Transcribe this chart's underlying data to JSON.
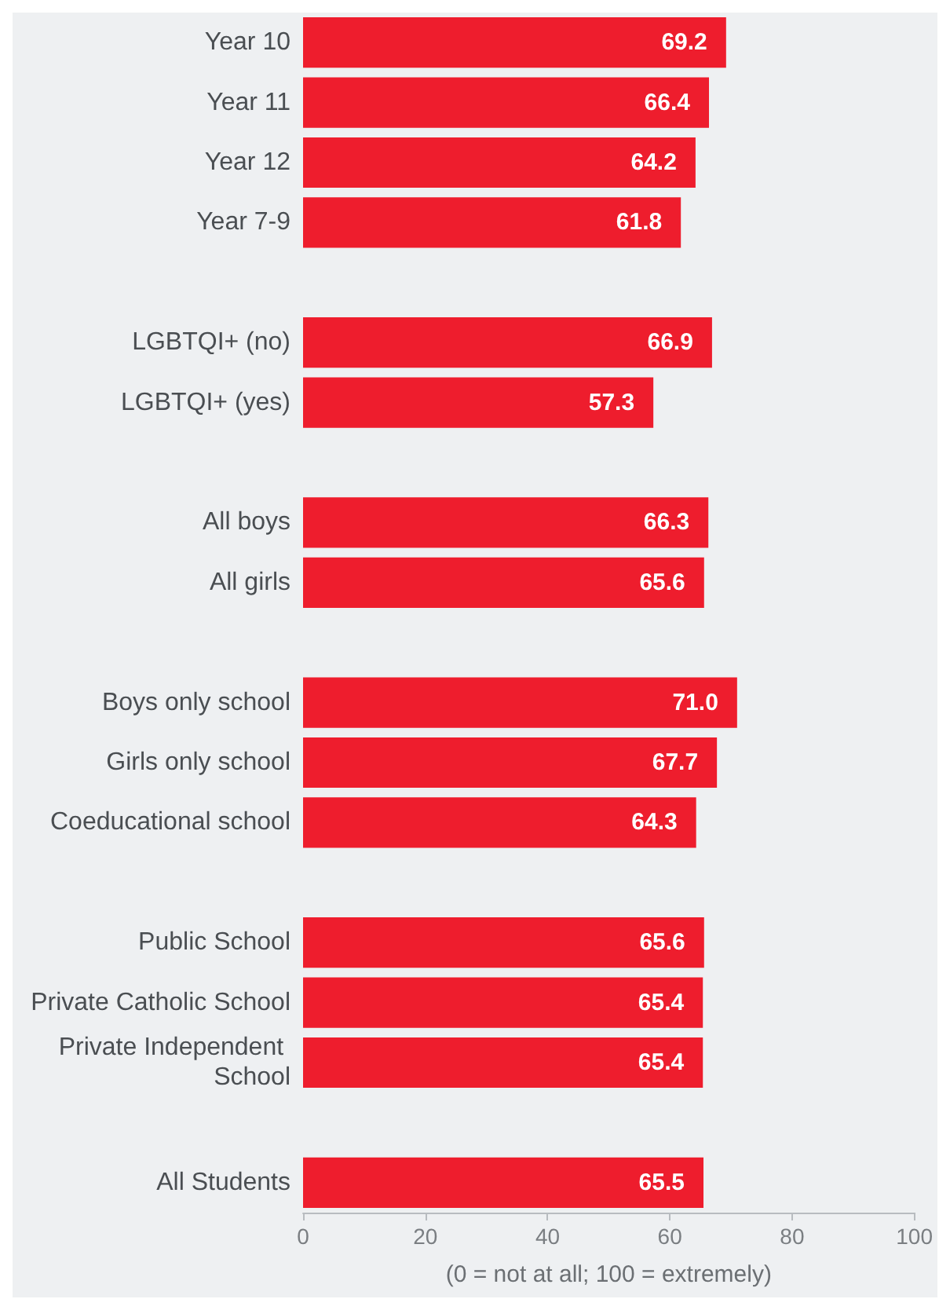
{
  "chart_data": {
    "type": "bar",
    "orientation": "horizontal",
    "xlabel": "(0 = not at all; 100 = extremely)",
    "categories": [
      "Year 10",
      "Year 11",
      "Year 12",
      "Year 7-9",
      null,
      "LGBTQI+ (no)",
      "LGBTQI+ (yes)",
      null,
      "All boys",
      "All girls",
      null,
      "Boys only school",
      "Girls only school",
      "Coeducational school",
      null,
      "Public School",
      "Private Catholic School",
      "Private Independent School",
      null,
      "All Students"
    ],
    "values": [
      69.2,
      66.4,
      64.2,
      61.8,
      null,
      66.9,
      57.3,
      null,
      66.3,
      65.6,
      null,
      71.0,
      67.7,
      64.3,
      null,
      65.6,
      65.4,
      65.4,
      null,
      65.5
    ],
    "value_labels": [
      "69.2",
      "66.4",
      "64.2",
      "61.8",
      null,
      "66.9",
      "57.3",
      null,
      "66.3",
      "65.6",
      null,
      "71.0",
      "67.7",
      "64.3",
      null,
      "65.6",
      "65.4",
      "65.4",
      null,
      "65.5"
    ],
    "color": "#ee1d2d",
    "xlim": [
      0,
      100
    ],
    "xticks": [
      0,
      20,
      40,
      60,
      80,
      100
    ],
    "grid": false
  }
}
